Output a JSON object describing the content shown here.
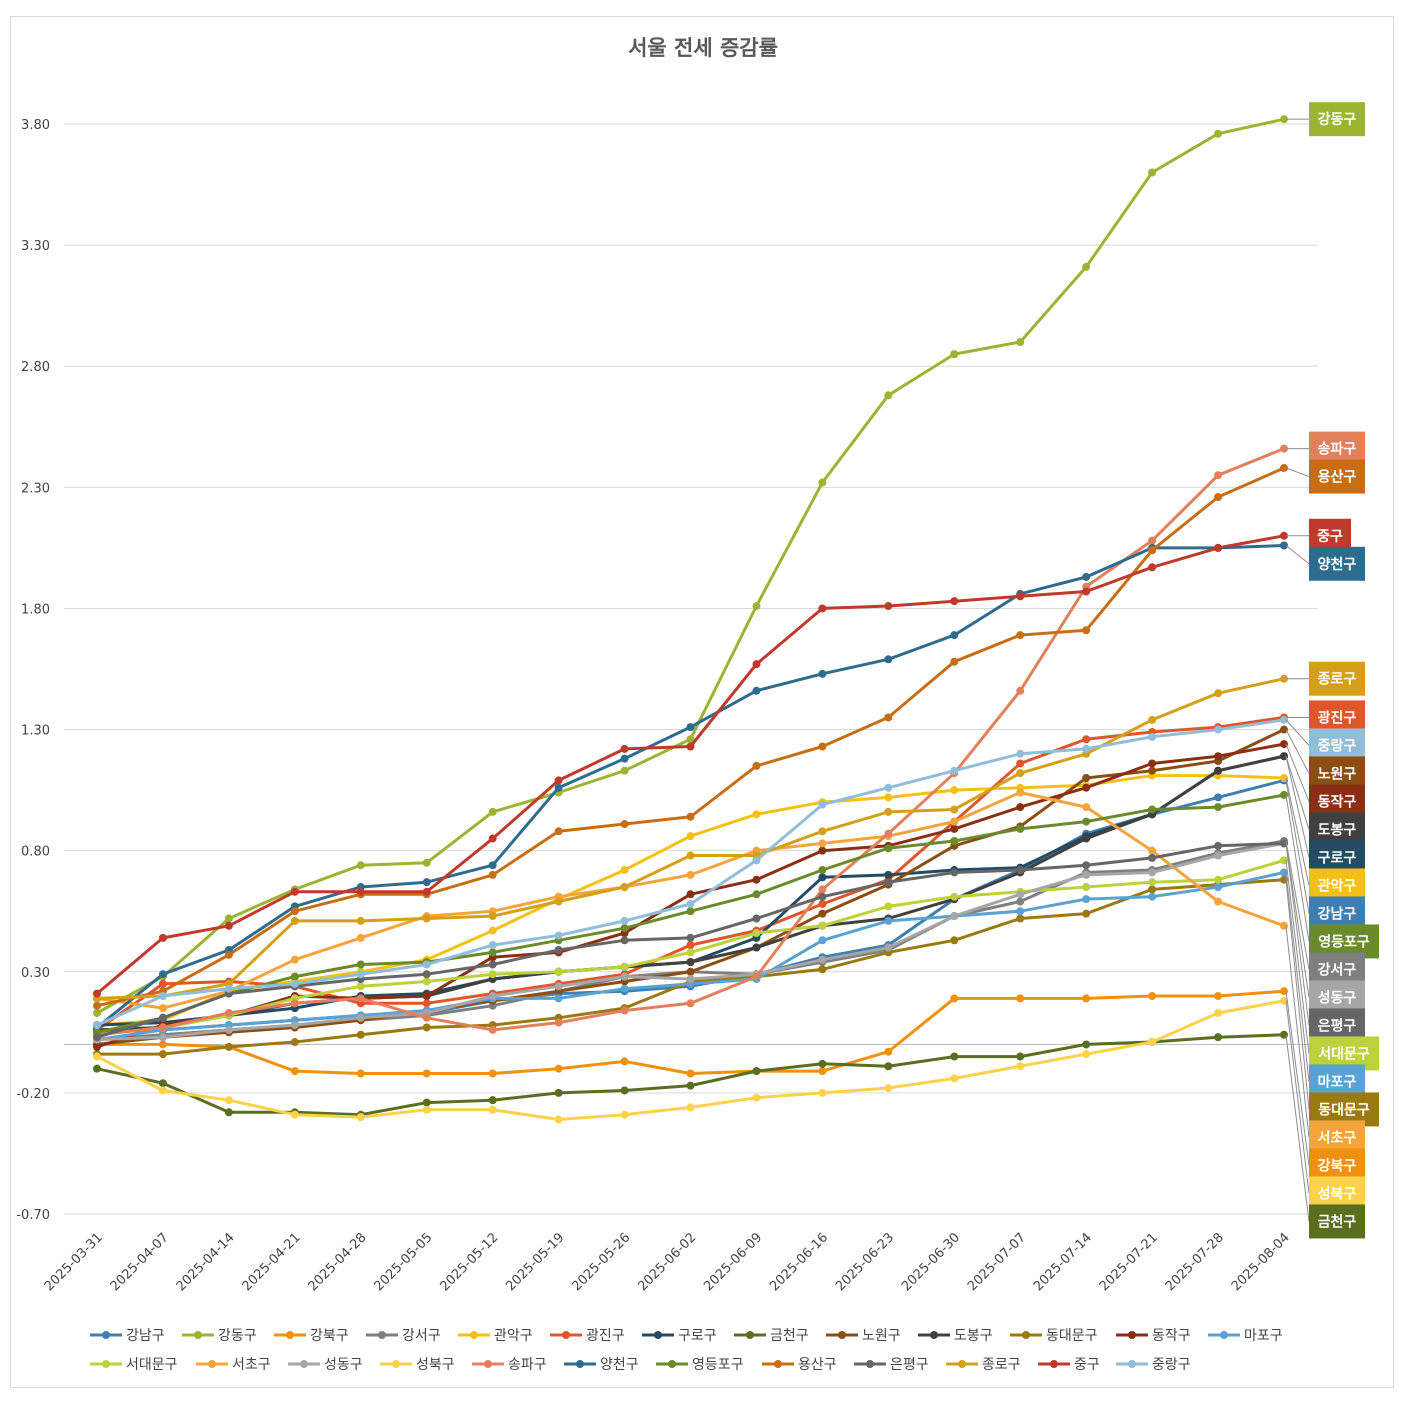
{
  "chart_data": {
    "type": "line",
    "title": "서울 전세 증감률",
    "xlabel": "",
    "ylabel": "",
    "ylim": [
      -0.7,
      4.0
    ],
    "yticks": [
      "3.80",
      "3.30",
      "2.80",
      "2.30",
      "1.80",
      "1.30",
      "0.80",
      "0.30",
      "-0.20",
      "-0.70"
    ],
    "ytick_values": [
      3.8,
      3.3,
      2.8,
      2.3,
      1.8,
      1.3,
      0.8,
      0.3,
      -0.2,
      -0.7
    ],
    "grid": true,
    "legend_position": "bottom",
    "x": [
      "2025-03-31",
      "2025-04-07",
      "2025-04-14",
      "2025-04-21",
      "2025-04-28",
      "2025-05-05",
      "2025-05-12",
      "2025-05-19",
      "2025-05-26",
      "2025-06-02",
      "2025-06-09",
      "2025-06-16",
      "2025-06-23",
      "2025-06-30",
      "2025-07-07",
      "2025-07-14",
      "2025-07-21",
      "2025-07-28",
      "2025-08-04"
    ],
    "series": [
      {
        "name": "강남구",
        "color": "#3e7fb0",
        "values": [
          0.05,
          0.06,
          0.08,
          0.1,
          0.12,
          0.13,
          0.18,
          0.21,
          0.22,
          0.24,
          0.29,
          0.36,
          0.41,
          0.6,
          0.72,
          0.87,
          0.95,
          1.02,
          1.09
        ]
      },
      {
        "name": "강동구",
        "color": "#9bb532",
        "values": [
          0.13,
          0.28,
          0.52,
          0.64,
          0.74,
          0.75,
          0.96,
          1.04,
          1.13,
          1.26,
          1.81,
          2.32,
          2.68,
          2.85,
          2.9,
          3.21,
          3.6,
          3.76,
          3.82
        ]
      },
      {
        "name": "강북구",
        "color": "#f0900e",
        "values": [
          0.0,
          0.0,
          -0.01,
          -0.11,
          -0.12,
          -0.12,
          -0.12,
          -0.1,
          -0.07,
          -0.12,
          -0.11,
          -0.11,
          -0.03,
          0.19,
          0.19,
          0.19,
          0.2,
          0.2,
          0.22
        ]
      },
      {
        "name": "강서구",
        "color": "#7f7f7f",
        "values": [
          0.02,
          0.04,
          0.06,
          0.08,
          0.1,
          0.12,
          0.16,
          0.22,
          0.28,
          0.3,
          0.29,
          0.34,
          0.39,
          0.53,
          0.59,
          0.71,
          0.72,
          0.79,
          0.84
        ]
      },
      {
        "name": "관악구",
        "color": "#f5c015",
        "values": [
          0.08,
          0.1,
          0.22,
          0.26,
          0.3,
          0.35,
          0.47,
          0.6,
          0.72,
          0.86,
          0.95,
          1.0,
          1.02,
          1.05,
          1.06,
          1.07,
          1.11,
          1.11,
          1.1
        ]
      },
      {
        "name": "광진구",
        "color": "#e0562b",
        "values": [
          0.06,
          0.25,
          0.26,
          0.24,
          0.17,
          0.17,
          0.21,
          0.25,
          0.29,
          0.41,
          0.47,
          0.58,
          0.68,
          0.92,
          1.16,
          1.26,
          1.29,
          1.31,
          1.35
        ]
      },
      {
        "name": "구로구",
        "color": "#234b63",
        "values": [
          0.08,
          0.09,
          0.12,
          0.15,
          0.2,
          0.21,
          0.27,
          0.3,
          0.32,
          0.34,
          0.44,
          0.69,
          0.7,
          0.72,
          0.73,
          0.86,
          0.95,
          1.13,
          1.19
        ]
      },
      {
        "name": "금천구",
        "color": "#5a6e1f",
        "values": [
          -0.1,
          -0.16,
          -0.28,
          -0.28,
          -0.29,
          -0.24,
          -0.23,
          -0.2,
          -0.19,
          -0.17,
          -0.11,
          -0.08,
          -0.09,
          -0.05,
          -0.05,
          0.0,
          0.01,
          0.03,
          0.04
        ]
      },
      {
        "name": "노원구",
        "color": "#8b4e12",
        "values": [
          0.0,
          0.03,
          0.05,
          0.07,
          0.1,
          0.14,
          0.18,
          0.22,
          0.26,
          0.3,
          0.4,
          0.54,
          0.66,
          0.82,
          0.9,
          1.1,
          1.13,
          1.17,
          1.3
        ]
      },
      {
        "name": "도봉구",
        "color": "#404040",
        "values": [
          0.06,
          0.07,
          0.12,
          0.17,
          0.19,
          0.2,
          0.27,
          0.3,
          0.32,
          0.34,
          0.4,
          0.49,
          0.52,
          0.6,
          0.71,
          0.85,
          0.95,
          1.13,
          1.19
        ]
      },
      {
        "name": "동대문구",
        "color": "#9a7a0e",
        "values": [
          -0.04,
          -0.04,
          -0.01,
          0.01,
          0.04,
          0.07,
          0.08,
          0.11,
          0.15,
          0.26,
          0.28,
          0.31,
          0.38,
          0.43,
          0.52,
          0.54,
          0.64,
          0.66,
          0.68
        ]
      },
      {
        "name": "동작구",
        "color": "#8b2f14",
        "values": [
          -0.01,
          0.08,
          0.12,
          0.2,
          0.19,
          0.2,
          0.36,
          0.38,
          0.46,
          0.62,
          0.68,
          0.8,
          0.82,
          0.89,
          0.98,
          1.06,
          1.16,
          1.19,
          1.24
        ]
      },
      {
        "name": "마포구",
        "color": "#5aa2d2",
        "values": [
          0.02,
          0.06,
          0.08,
          0.1,
          0.12,
          0.14,
          0.19,
          0.19,
          0.23,
          0.25,
          0.27,
          0.43,
          0.51,
          0.53,
          0.55,
          0.6,
          0.61,
          0.65,
          0.71
        ]
      },
      {
        "name": "서대문구",
        "color": "#bcd13b",
        "values": [
          0.04,
          0.07,
          0.12,
          0.19,
          0.24,
          0.26,
          0.29,
          0.3,
          0.32,
          0.38,
          0.46,
          0.49,
          0.57,
          0.61,
          0.63,
          0.65,
          0.67,
          0.68,
          0.76
        ]
      },
      {
        "name": "서초구",
        "color": "#f5a43c",
        "values": [
          0.19,
          0.15,
          0.22,
          0.35,
          0.44,
          0.53,
          0.55,
          0.61,
          0.65,
          0.7,
          0.8,
          0.83,
          0.86,
          0.92,
          1.04,
          0.98,
          0.8,
          0.59,
          0.49
        ]
      },
      {
        "name": "성동구",
        "color": "#a6a6a6",
        "values": [
          0.02,
          0.03,
          0.06,
          0.08,
          0.11,
          0.13,
          0.2,
          0.24,
          0.28,
          0.27,
          0.29,
          0.35,
          0.4,
          0.53,
          0.62,
          0.7,
          0.71,
          0.78,
          0.83
        ]
      },
      {
        "name": "성북구",
        "color": "#fbd24a",
        "values": [
          -0.05,
          -0.19,
          -0.23,
          -0.29,
          -0.3,
          -0.27,
          -0.27,
          -0.31,
          -0.29,
          -0.26,
          -0.22,
          -0.2,
          -0.18,
          -0.14,
          -0.09,
          -0.04,
          0.01,
          0.13,
          0.18
        ]
      },
      {
        "name": "송파구",
        "color": "#e3805c",
        "values": [
          0.04,
          0.07,
          0.13,
          0.17,
          0.19,
          0.11,
          0.06,
          0.09,
          0.14,
          0.17,
          0.28,
          0.64,
          0.87,
          1.12,
          1.46,
          1.89,
          2.08,
          2.35,
          2.46
        ]
      },
      {
        "name": "양천구",
        "color": "#2d6b8f",
        "values": [
          0.07,
          0.29,
          0.39,
          0.57,
          0.65,
          0.67,
          0.74,
          1.06,
          1.18,
          1.31,
          1.46,
          1.53,
          1.59,
          1.69,
          1.86,
          1.93,
          2.05,
          2.05,
          2.06
        ]
      },
      {
        "name": "영등포구",
        "color": "#6b8a2a",
        "values": [
          0.05,
          0.11,
          0.21,
          0.28,
          0.33,
          0.34,
          0.38,
          0.43,
          0.48,
          0.55,
          0.62,
          0.72,
          0.81,
          0.84,
          0.89,
          0.92,
          0.97,
          0.98,
          1.03
        ]
      },
      {
        "name": "용산구",
        "color": "#c86e12",
        "values": [
          0.16,
          0.22,
          0.37,
          0.55,
          0.62,
          0.62,
          0.7,
          0.88,
          0.91,
          0.94,
          1.15,
          1.23,
          1.35,
          1.58,
          1.69,
          1.71,
          2.04,
          2.26,
          2.38
        ]
      },
      {
        "name": "은평구",
        "color": "#666666",
        "values": [
          0.03,
          0.11,
          0.21,
          0.24,
          0.27,
          0.29,
          0.33,
          0.39,
          0.43,
          0.44,
          0.52,
          0.61,
          0.67,
          0.71,
          0.72,
          0.74,
          0.77,
          0.82,
          0.83
        ]
      },
      {
        "name": "종로구",
        "color": "#d4a017",
        "values": [
          0.19,
          0.2,
          0.25,
          0.51,
          0.51,
          0.52,
          0.53,
          0.59,
          0.65,
          0.78,
          0.78,
          0.88,
          0.96,
          0.97,
          1.12,
          1.2,
          1.34,
          1.45,
          1.51
        ]
      },
      {
        "name": "중구",
        "color": "#c0392b",
        "values": [
          0.21,
          0.44,
          0.49,
          0.63,
          0.63,
          0.63,
          0.85,
          1.09,
          1.22,
          1.23,
          1.57,
          1.8,
          1.81,
          1.83,
          1.85,
          1.87,
          1.97,
          2.05,
          2.1
        ]
      },
      {
        "name": "중랑구",
        "color": "#91bdd9",
        "values": [
          0.08,
          0.2,
          0.23,
          0.25,
          0.29,
          0.33,
          0.41,
          0.45,
          0.51,
          0.58,
          0.76,
          0.99,
          1.06,
          1.13,
          1.2,
          1.22,
          1.27,
          1.3,
          1.34
        ]
      }
    ],
    "end_labels": [
      {
        "name": "강동구",
        "color": "#9bb532"
      },
      {
        "name": "송파구",
        "color": "#e3805c"
      },
      {
        "name": "용산구",
        "color": "#c86e12"
      },
      {
        "name": "중구",
        "color": "#c0392b"
      },
      {
        "name": "양천구",
        "color": "#2d6b8f"
      },
      {
        "name": "종로구",
        "color": "#d4a017"
      },
      {
        "name": "광진구",
        "color": "#e0562b"
      },
      {
        "name": "중랑구",
        "color": "#91bdd9"
      },
      {
        "name": "노원구",
        "color": "#8b4e12"
      },
      {
        "name": "동작구",
        "color": "#8b2f14"
      },
      {
        "name": "도봉구",
        "color": "#404040"
      },
      {
        "name": "관악구",
        "color": "#f5c015"
      },
      {
        "name": "구로구",
        "color": "#234b63"
      },
      {
        "name": "강남구",
        "color": "#3e7fb0"
      },
      {
        "name": "영등포구",
        "color": "#6b8a2a"
      },
      {
        "name": "강서구",
        "color": "#7f7f7f"
      },
      {
        "name": "성동구",
        "color": "#a6a6a6"
      },
      {
        "name": "은평구",
        "color": "#666666"
      },
      {
        "name": "서대문구",
        "color": "#bcd13b"
      },
      {
        "name": "동대문구",
        "color": "#9a7a0e"
      },
      {
        "name": "마포구",
        "color": "#5aa2d2"
      },
      {
        "name": "서초구",
        "color": "#f5a43c"
      },
      {
        "name": "강북구",
        "color": "#f0900e"
      },
      {
        "name": "성북구",
        "color": "#fbd24a"
      },
      {
        "name": "금천구",
        "color": "#5a6e1f"
      }
    ]
  }
}
